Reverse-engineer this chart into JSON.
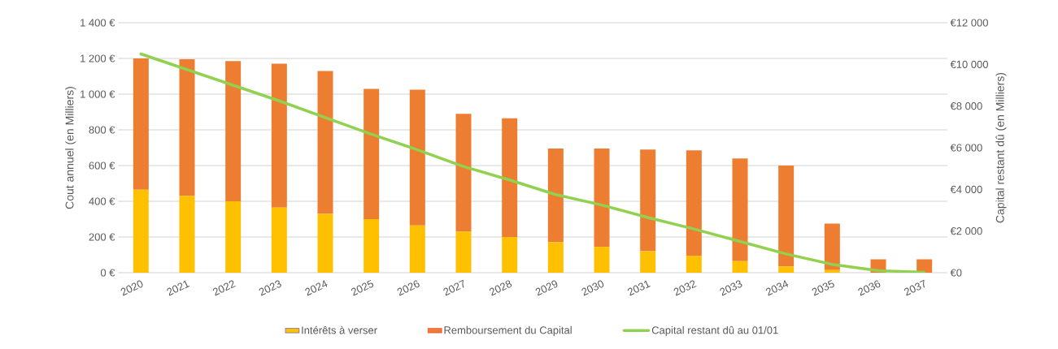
{
  "chart_data": {
    "type": "bar",
    "stacked": true,
    "ylabel": "Cout annuel (en Milliers)",
    "y2label": "Capital restant dû (en Milliers)",
    "categories": [
      "2020",
      "2021",
      "2022",
      "2023",
      "2024",
      "2025",
      "2026",
      "2027",
      "2028",
      "2029",
      "2030",
      "2031",
      "2032",
      "2033",
      "2034",
      "2035",
      "2036",
      "2037"
    ],
    "series": [
      {
        "name": "Intérêts à verser",
        "color": "#ffc000",
        "values": [
          465,
          430,
          400,
          365,
          330,
          300,
          265,
          230,
          200,
          170,
          145,
          120,
          95,
          65,
          35,
          15,
          0,
          0
        ]
      },
      {
        "name": "Remboursement du Capital",
        "color": "#ed7d31",
        "values": [
          735,
          765,
          785,
          805,
          800,
          730,
          760,
          660,
          665,
          525,
          550,
          570,
          590,
          575,
          565,
          260,
          75,
          75
        ]
      },
      {
        "name": "Capital restant dû au 01/01",
        "color": "#92d050",
        "type": "line",
        "axis": "y2",
        "values": [
          10500,
          9750,
          9000,
          8250,
          7450,
          6650,
          5900,
          5100,
          4450,
          3750,
          3250,
          2650,
          2100,
          1500,
          900,
          400,
          100,
          20
        ]
      }
    ],
    "ylim": [
      0,
      1400
    ],
    "yticks": [
      {
        "value": 0,
        "label": "0 €"
      },
      {
        "value": 200,
        "label": "200 €"
      },
      {
        "value": 400,
        "label": "400 €"
      },
      {
        "value": 600,
        "label": "600 €"
      },
      {
        "value": 800,
        "label": "800 €"
      },
      {
        "value": 1000,
        "label": "1 000 €"
      },
      {
        "value": 1200,
        "label": "1 200 €"
      },
      {
        "value": 1400,
        "label": "1 400 €"
      }
    ],
    "y2lim": [
      0,
      12000
    ],
    "y2ticks": [
      {
        "value": 0,
        "label": "€0"
      },
      {
        "value": 2000,
        "label": "€2 000"
      },
      {
        "value": 4000,
        "label": "€4 000"
      },
      {
        "value": 6000,
        "label": "€6 000"
      },
      {
        "value": 8000,
        "label": "€8 000"
      },
      {
        "value": 10000,
        "label": "€10 000"
      },
      {
        "value": 12000,
        "label": "€12 000"
      }
    ],
    "grid": "y",
    "legend": "bottom"
  }
}
